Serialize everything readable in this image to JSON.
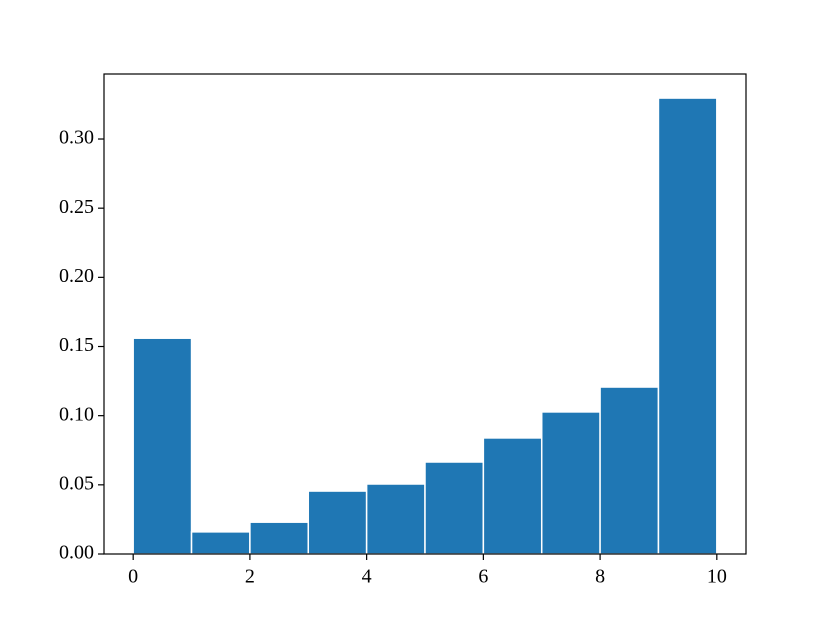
{
  "chart_data": {
    "type": "histogram",
    "bins": [
      0,
      1,
      2,
      3,
      4,
      5,
      6,
      7,
      8,
      9,
      10
    ],
    "values": [
      0.156,
      0.016,
      0.023,
      0.0455,
      0.0506,
      0.0665,
      0.0839,
      0.1027,
      0.1207,
      0.3296
    ],
    "color": "#1f77b4",
    "edgecolor": "#ffffff",
    "xlim": [
      -0.5,
      10.5
    ],
    "ylim": [
      0,
      0.347
    ],
    "xticks": [
      0,
      2,
      4,
      6,
      8,
      10
    ],
    "yticks": [
      {
        "value": 0,
        "label": "0.00"
      },
      {
        "value": 0.05,
        "label": "0.05"
      },
      {
        "value": 0.1,
        "label": "0.10"
      },
      {
        "value": 0.15,
        "label": "0.15"
      },
      {
        "value": 0.2,
        "label": "0.20"
      },
      {
        "value": 0.25,
        "label": "0.25"
      },
      {
        "value": 0.3,
        "label": "0.30"
      }
    ],
    "grid": false
  }
}
